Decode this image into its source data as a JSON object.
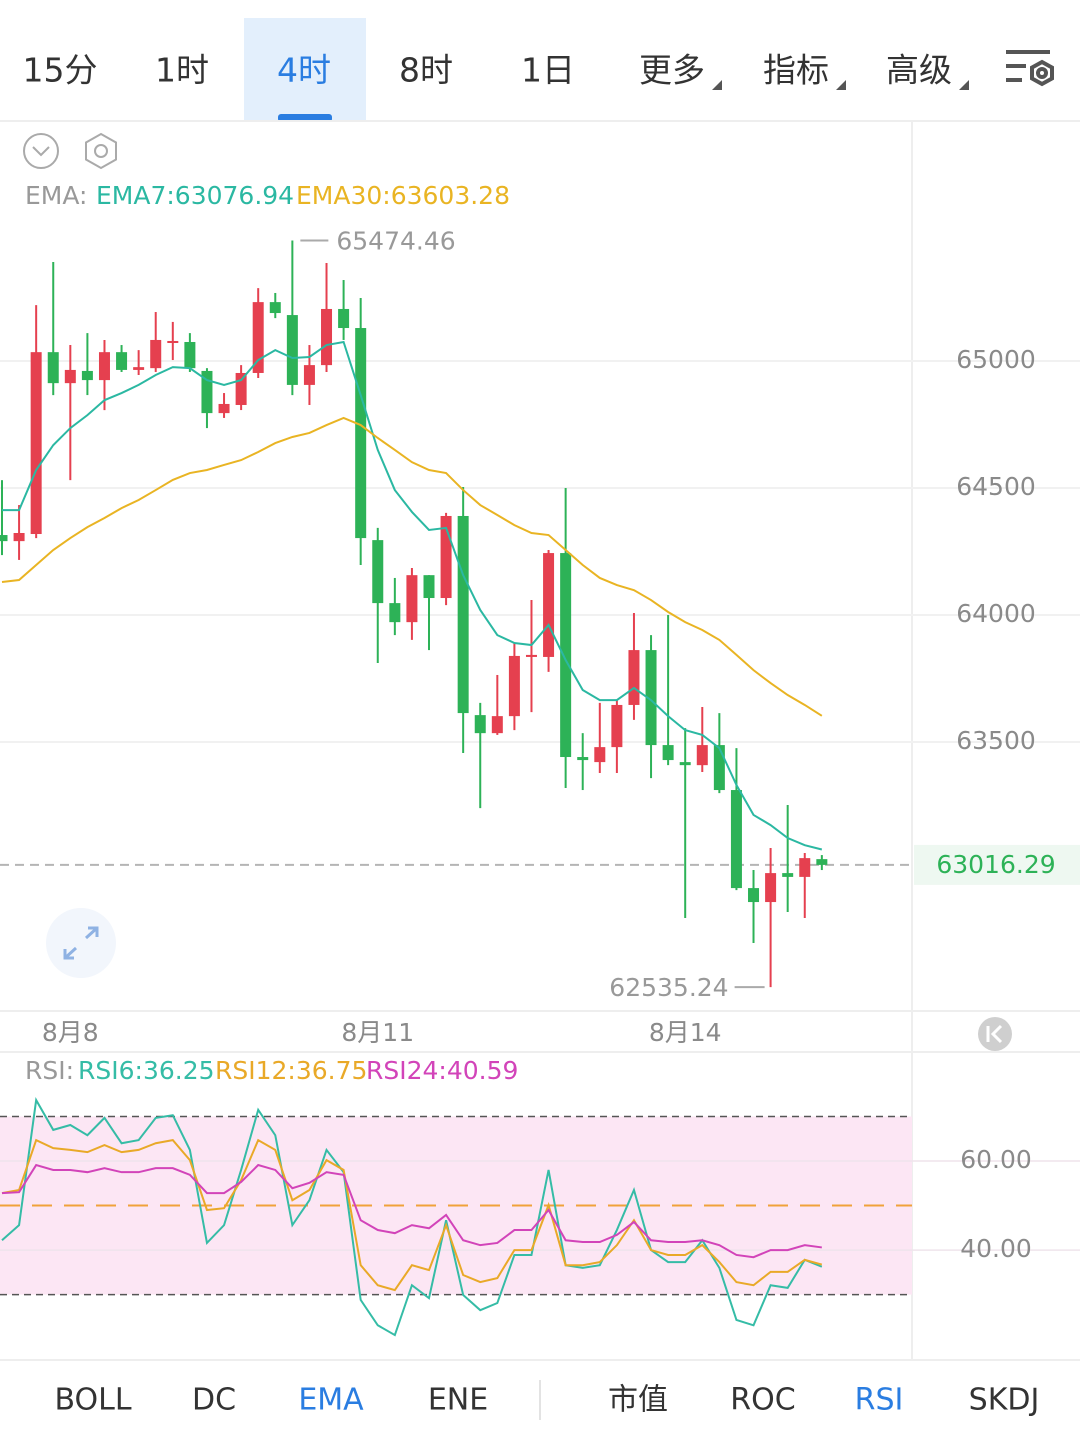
{
  "timeframes": {
    "items": [
      "15分",
      "1时",
      "4时",
      "8时",
      "1日",
      "更多",
      "指标",
      "高级"
    ],
    "selected": 2
  },
  "chart_data": [
    {
      "type": "candlestick",
      "legend_title": "EMA:",
      "categories": [
        null,
        null,
        null,
        null,
        "8月8",
        null,
        null,
        null,
        null,
        null,
        null,
        null,
        null,
        null,
        null,
        null,
        null,
        null,
        null,
        null,
        null,
        null,
        "8月11",
        null,
        null,
        null,
        null,
        null,
        null,
        null,
        null,
        null,
        null,
        null,
        null,
        null,
        null,
        null,
        null,
        null,
        "8月14",
        null,
        null,
        null,
        null,
        null,
        null,
        null,
        null
      ],
      "ohlc": [
        [
          64315,
          64531,
          64236,
          64291
        ],
        [
          64291,
          64433,
          64217,
          64323
        ],
        [
          64319,
          65220,
          64303,
          65035
        ],
        [
          65035,
          65390,
          64866,
          64913
        ],
        [
          64913,
          65063,
          64531,
          64965
        ],
        [
          64961,
          65110,
          64866,
          64925
        ],
        [
          64925,
          65083,
          64807,
          65035
        ],
        [
          65035,
          65063,
          64957,
          64965
        ],
        [
          64965,
          65043,
          64945,
          64976
        ],
        [
          64972,
          65193,
          64957,
          65083
        ],
        [
          65071,
          65154,
          65004,
          65079
        ],
        [
          65075,
          65110,
          64957,
          64972
        ],
        [
          64961,
          64972,
          64736,
          64795
        ],
        [
          64795,
          64874,
          64776,
          64831
        ],
        [
          64827,
          64984,
          64807,
          64953
        ],
        [
          64953,
          65287,
          64933,
          65232
        ],
        [
          65232,
          65268,
          65169,
          65189
        ],
        [
          65181,
          65474.46,
          64866,
          64906
        ],
        [
          64906,
          65063,
          64827,
          64984
        ],
        [
          64984,
          65386,
          64957,
          65205
        ],
        [
          65205,
          65319,
          65083,
          65130
        ],
        [
          65130,
          65248,
          64197,
          64303
        ],
        [
          64295,
          64343,
          63811,
          64047
        ],
        [
          64047,
          64146,
          63921,
          63972
        ],
        [
          63972,
          64185,
          63902,
          64157
        ],
        [
          64157,
          64157,
          63862,
          64067
        ],
        [
          64067,
          64402,
          64039,
          64390
        ],
        [
          64390,
          64504,
          63457,
          63614
        ],
        [
          63606,
          63654,
          63240,
          63535
        ],
        [
          63535,
          63764,
          63528,
          63602
        ],
        [
          63602,
          63890,
          63547,
          63839
        ],
        [
          63835,
          64059,
          63618,
          63843
        ],
        [
          63835,
          64256,
          63776,
          64244
        ],
        [
          64244,
          64500,
          63319,
          63441
        ],
        [
          63441,
          63535,
          63311,
          63429
        ],
        [
          63421,
          63654,
          63378,
          63480
        ],
        [
          63480,
          63665,
          63378,
          63646
        ],
        [
          63646,
          64008,
          63587,
          63862
        ],
        [
          63862,
          63921,
          63358,
          63488
        ],
        [
          63488,
          64000,
          63409,
          63429
        ],
        [
          63421,
          63555,
          62807,
          63409
        ],
        [
          63409,
          63638,
          63382,
          63488
        ],
        [
          63488,
          63614,
          63299,
          63311
        ],
        [
          63311,
          63476,
          62917,
          62925
        ],
        [
          62925,
          62996,
          62709,
          62870
        ],
        [
          62870,
          63083,
          62535.24,
          62984
        ],
        [
          62984,
          63252,
          62831,
          62969
        ],
        [
          62969,
          63063,
          62807,
          63043
        ],
        [
          63039,
          63055,
          62996,
          63016.29
        ]
      ],
      "up_color": "#e5404f",
      "down_color": "#2db257",
      "series": [
        {
          "name": "EMA7:63076.94",
          "color": "#2bb8a2",
          "values": [
            64413,
            64413,
            64571,
            64669,
            64736,
            64787,
            64846,
            64874,
            64906,
            64945,
            64976,
            64972,
            64925,
            64906,
            64925,
            65004,
            65043,
            65012,
            65016,
            65063,
            65075,
            64866,
            64650,
            64492,
            64406,
            64335,
            64343,
            64157,
            64020,
            63921,
            63890,
            63882,
            63961,
            63823,
            63705,
            63665,
            63665,
            63713,
            63665,
            63602,
            63547,
            63528,
            63476,
            63331,
            63213,
            63173,
            63122,
            63094,
            63076.94
          ]
        },
        {
          "name": "EMA30:63603.28",
          "color": "#e9b423",
          "values": [
            64130,
            64138,
            64197,
            64256,
            64303,
            64346,
            64382,
            64421,
            64453,
            64492,
            64532,
            64559,
            64571,
            64591,
            64610,
            64642,
            64677,
            64701,
            64717,
            64748,
            64776,
            64748,
            64697,
            64650,
            64602,
            64571,
            64559,
            64492,
            64433,
            64394,
            64354,
            64323,
            64315,
            64256,
            64197,
            64146,
            64118,
            64098,
            64059,
            64012,
            63972,
            63941,
            63902,
            63843,
            63783,
            63732,
            63685,
            63646,
            63603.28
          ]
        }
      ],
      "ylim": [
        62445,
        65949
      ],
      "yticks": [
        63500,
        64000,
        64500,
        65000
      ],
      "grid": true
    },
    {
      "type": "line",
      "legend_title": "RSI:",
      "series": [
        {
          "name": "RSI6:36.25",
          "color": "#35bca6",
          "values": [
            42.2,
            45.6,
            73.7,
            67.0,
            68.1,
            65.8,
            69.7,
            64.0,
            64.7,
            69.7,
            70.3,
            62.5,
            41.6,
            45.6,
            58.0,
            71.5,
            65.8,
            45.6,
            51.2,
            62.5,
            57.5,
            28.8,
            23.1,
            20.9,
            32.1,
            29.2,
            46.7,
            29.9,
            26.5,
            28.1,
            38.9,
            38.9,
            58.0,
            36.6,
            36.0,
            36.6,
            44.5,
            53.5,
            40.0,
            37.3,
            37.3,
            42.2,
            36.0,
            24.3,
            23.1,
            32.1,
            31.5,
            37.8,
            36.25
          ]
        },
        {
          "name": "RSI12:36.75",
          "color": "#e9a928",
          "values": [
            52.8,
            53.5,
            64.7,
            62.9,
            62.5,
            62.0,
            63.6,
            62.0,
            62.5,
            64.0,
            64.7,
            60.2,
            49.0,
            49.4,
            55.7,
            64.7,
            62.5,
            51.2,
            53.5,
            60.2,
            58.0,
            36.6,
            32.1,
            31.0,
            36.6,
            35.5,
            45.6,
            34.4,
            32.8,
            33.7,
            40.0,
            40.0,
            50.1,
            36.6,
            36.6,
            37.3,
            41.1,
            46.7,
            40.0,
            38.9,
            38.9,
            41.1,
            37.3,
            32.8,
            32.1,
            35.1,
            35.1,
            37.8,
            36.75
          ]
        },
        {
          "name": "RSI24:40.59",
          "color": "#d244b9",
          "values": [
            52.8,
            53.0,
            59.1,
            58.0,
            58.0,
            57.5,
            58.4,
            57.5,
            57.5,
            58.4,
            58.4,
            56.9,
            52.8,
            52.8,
            55.3,
            59.1,
            58.0,
            53.9,
            55.1,
            57.5,
            56.9,
            46.7,
            44.5,
            43.8,
            45.6,
            44.9,
            47.9,
            42.2,
            41.1,
            41.6,
            44.5,
            44.5,
            49.0,
            42.2,
            41.8,
            41.8,
            43.4,
            46.3,
            42.2,
            41.8,
            41.8,
            42.2,
            41.1,
            38.9,
            38.4,
            40.0,
            40.0,
            41.1,
            40.59
          ]
        }
      ],
      "levels": [
        30,
        50,
        70
      ],
      "ylim": [
        15.3,
        84.5
      ],
      "yticks": [
        {
          "value": 60,
          "label": "60.00"
        },
        {
          "value": 40,
          "label": "40.00"
        }
      ],
      "grid": true
    }
  ],
  "main_indicators": {
    "items": [
      "BOLL",
      "DC",
      "EMA",
      "ENE"
    ],
    "selected": 2
  },
  "sub_indicators": {
    "items": [
      "市值",
      "ROC",
      "RSI",
      "SKDJ"
    ],
    "selected": 2
  }
}
